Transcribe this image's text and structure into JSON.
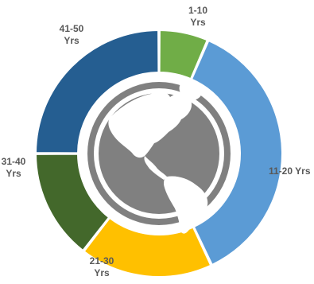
{
  "chart_data": {
    "type": "pie",
    "variant": "donut",
    "title": "",
    "center_icon": "globe-americas-icon",
    "slices": [
      {
        "label_line1": "1-10",
        "label_line2": "Yrs",
        "value": 6.5,
        "color": "#70AD47"
      },
      {
        "label_line1": "11-20 Yrs",
        "label_line2": "",
        "value": 36.5,
        "color": "#5B9BD5"
      },
      {
        "label_line1": "21-30",
        "label_line2": "Yrs",
        "value": 17.5,
        "color": "#FFC000"
      },
      {
        "label_line1": "31-40",
        "label_line2": "Yrs",
        "value": 14.5,
        "color": "#43682B"
      },
      {
        "label_line1": "41-50",
        "label_line2": "Yrs",
        "value": 25.0,
        "color": "#255E91"
      }
    ]
  }
}
